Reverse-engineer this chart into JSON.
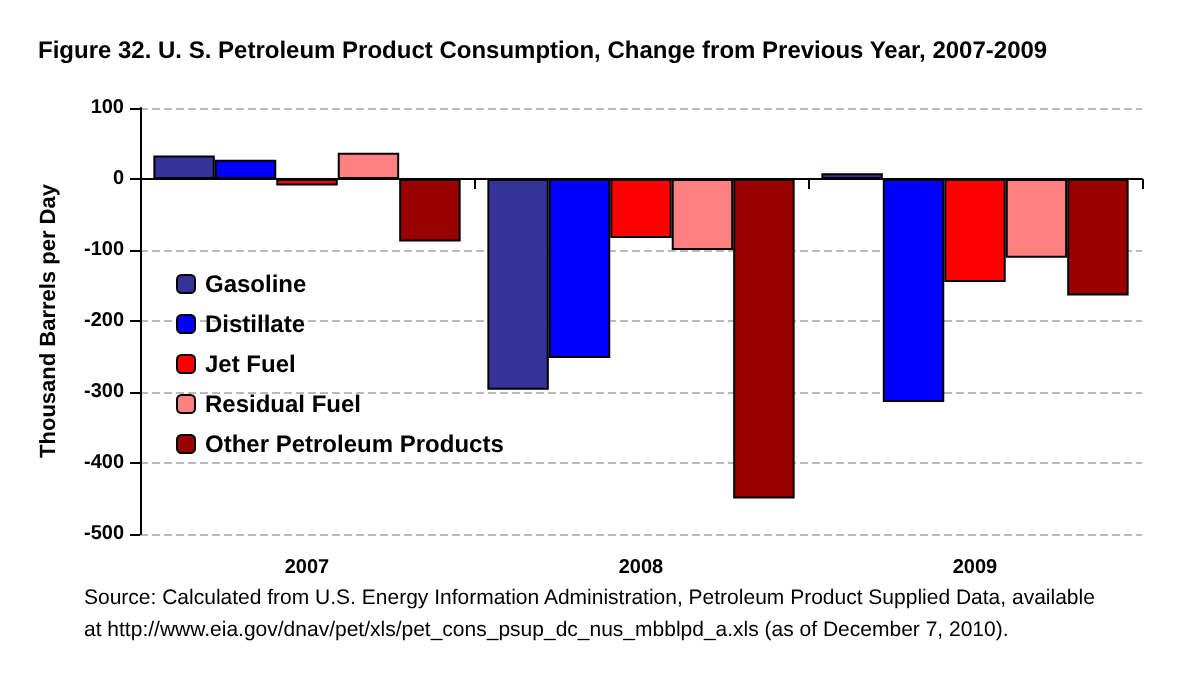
{
  "chart_data": {
    "type": "bar",
    "title": "Figure 32. U. S. Petroleum Product Consumption, Change from Previous Year, 2007-2009",
    "ylabel": "Thousand Barrels per Day",
    "categories": [
      "2007",
      "2008",
      "2009"
    ],
    "series": [
      {
        "name": "Gasoline",
        "color": "#333399",
        "values": [
          33,
          -297,
          8
        ]
      },
      {
        "name": "Distillate",
        "color": "#0000ff",
        "values": [
          27,
          -252,
          -314
        ]
      },
      {
        "name": "Jet Fuel",
        "color": "#ff0000",
        "values": [
          -9,
          -83,
          -145
        ]
      },
      {
        "name": "Residual Fuel",
        "color": "#ff8080",
        "values": [
          37,
          -100,
          -111
        ]
      },
      {
        "name": "Other Petroleum Products",
        "color": "#990000",
        "values": [
          -88,
          -450,
          -164
        ]
      }
    ],
    "ylim": [
      -500,
      100
    ],
    "yticks": [
      -500,
      -400,
      -300,
      -200,
      -100,
      0,
      100
    ],
    "grid": "y",
    "legend": "left",
    "annotations": [
      "Source: Calculated from U.S. Energy Information Administration, Petroleum Product Supplied Data, available\nat http://www.eia.gov/dnav/pet/xls/pet_cons_psup_dc_nus_mbblpd_a.xls (as of December 7, 2010)."
    ]
  }
}
